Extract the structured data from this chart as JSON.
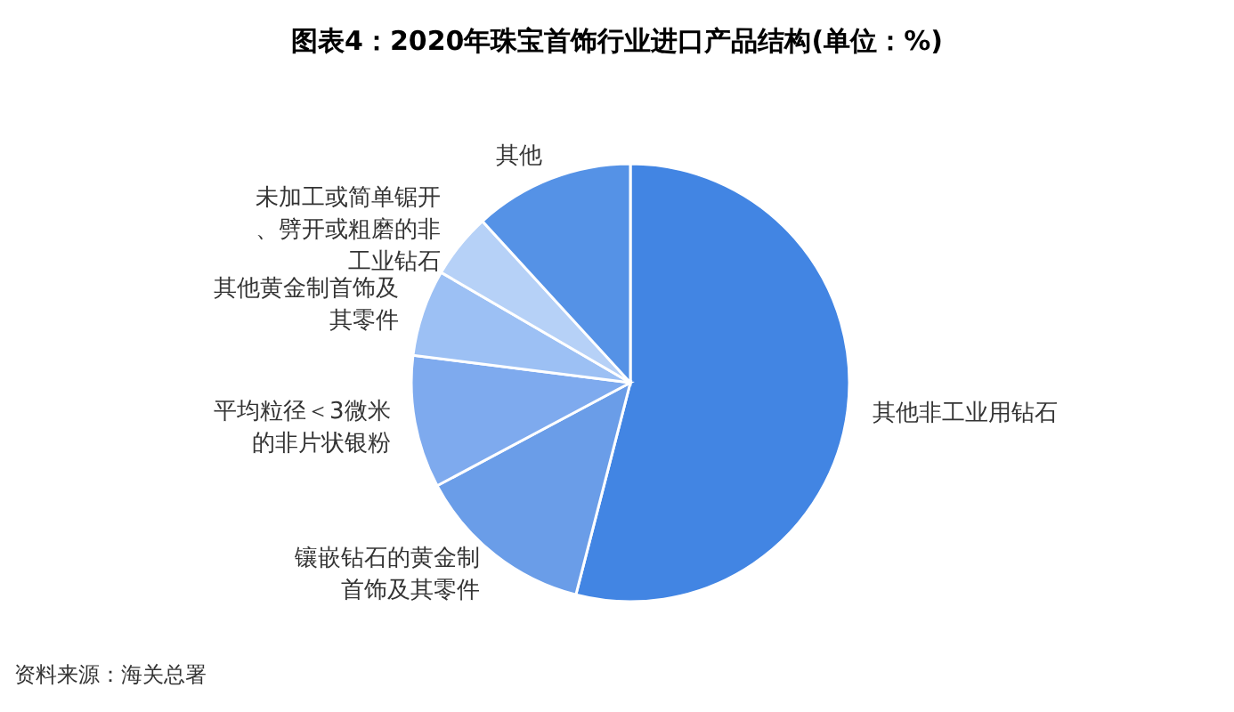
{
  "chart_data": {
    "type": "pie",
    "title": "图表4：2020年珠宝首饰行业进口产品结构(单位：%)",
    "categories": [
      "其他非工业用钻石",
      "镶嵌钻石的黄金制首饰及其零件",
      "平均粒径＜3微米的非片状银粉",
      "其他黄金制首饰及其零件",
      "未加工或简单锯开、劈开或粗磨的非工业钻石",
      "其他"
    ],
    "values": [
      54,
      13.2,
      9.8,
      6.4,
      4.8,
      11.8
    ],
    "colors": [
      "#4285e3",
      "#6a9de8",
      "#7eaaee",
      "#9cc0f4",
      "#b6d1f7",
      "#5592e6"
    ],
    "annotations": [
      "资料来源：海关总署"
    ]
  }
}
